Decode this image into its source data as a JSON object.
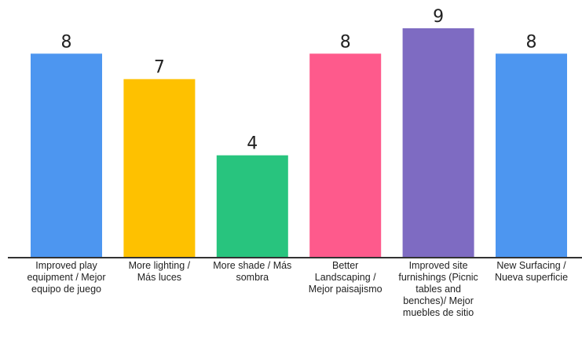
{
  "chart_data": {
    "type": "bar",
    "title": "",
    "xlabel": "",
    "ylabel": "",
    "ylim": [
      0,
      9
    ],
    "grid": false,
    "legend": "none",
    "categories": [
      "Improved play equipment / Mejor equipo de juego",
      "More lighting / Más luces",
      "More shade / Más sombra",
      "Better Landscaping / Mejor paisajismo",
      "Improved site furnishings (Picnic tables and benches)/ Mejor muebles de sitio",
      "New Surfacing / Nueva superficie"
    ],
    "values": [
      8,
      7,
      4,
      8,
      9,
      8
    ],
    "data_labels": [
      "8",
      "7",
      "4",
      "8",
      "9",
      "8"
    ],
    "colors": [
      "#4d96f0",
      "#fec100",
      "#28c47e",
      "#fe5a8c",
      "#7e6bc2",
      "#4d96f0"
    ]
  }
}
